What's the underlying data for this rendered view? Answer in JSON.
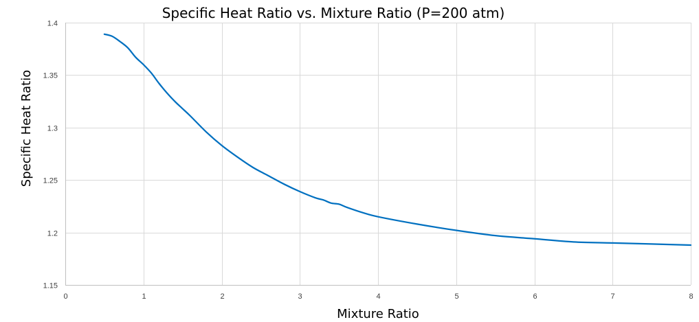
{
  "chart_data": {
    "type": "line",
    "title": "Specific Heat Ratio vs. Mixture Ratio (P=200 atm)",
    "xlabel": "Mixture Ratio",
    "ylabel": "Specific Heat Ratio",
    "xlim": [
      0,
      8
    ],
    "ylim": [
      1.15,
      1.4
    ],
    "x_ticks": [
      0,
      1,
      2,
      3,
      4,
      5,
      6,
      7,
      8
    ],
    "y_ticks": [
      1.15,
      1.2,
      1.25,
      1.3,
      1.35,
      1.4
    ],
    "x_tick_labels": [
      "0",
      "1",
      "2",
      "3",
      "4",
      "5",
      "6",
      "7",
      "8"
    ],
    "y_tick_labels": [
      "1.15",
      "1.2",
      "1.25",
      "1.3",
      "1.35",
      "1.4"
    ],
    "grid": true,
    "legend": "none",
    "series_color": "#0070c0",
    "series": [
      {
        "x": [
          0.5,
          0.6,
          0.7,
          0.8,
          0.9,
          1.0,
          1.1,
          1.2,
          1.3,
          1.4,
          1.5,
          1.6,
          1.8,
          2.0,
          2.2,
          2.4,
          2.6,
          2.8,
          3.0,
          3.2,
          3.3,
          3.4,
          3.5,
          3.6,
          3.8,
          4.0,
          4.5,
          5.0,
          5.5,
          6.0,
          6.5,
          7.0,
          7.5,
          8.0
        ],
        "values": [
          1.389,
          1.387,
          1.382,
          1.376,
          1.367,
          1.36,
          1.352,
          1.342,
          1.333,
          1.325,
          1.318,
          1.311,
          1.296,
          1.283,
          1.272,
          1.262,
          1.254,
          1.246,
          1.239,
          1.233,
          1.231,
          1.228,
          1.227,
          1.224,
          1.219,
          1.215,
          1.208,
          1.202,
          1.197,
          1.194,
          1.191,
          1.19,
          1.189,
          1.188
        ]
      }
    ]
  }
}
